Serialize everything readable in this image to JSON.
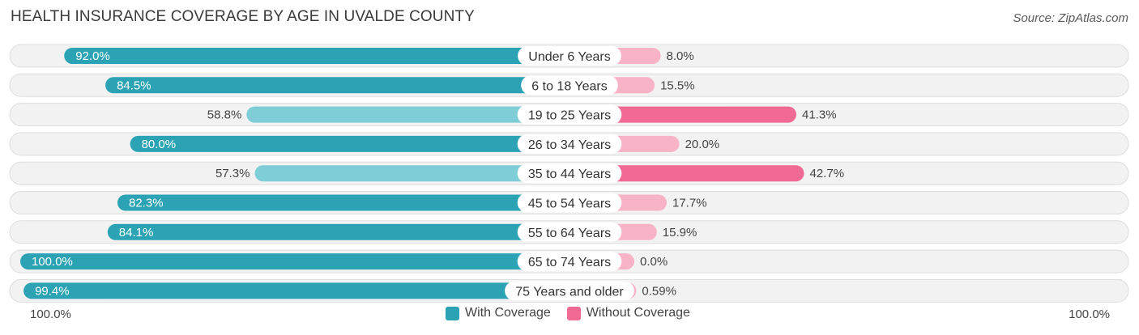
{
  "header": {
    "title": "HEALTH INSURANCE COVERAGE BY AGE IN UVALDE COUNTY",
    "source": "Source: ZipAtlas.com"
  },
  "colors": {
    "with_dark": "#2BA3B5",
    "with_light": "#7FCDD6",
    "without_dark": "#F06A93",
    "without_light": "#F8B3C7",
    "row_bg": "#F2F2F2",
    "row_border": "#DDDDDD"
  },
  "chart_data": {
    "type": "bar",
    "orientation": "horizontal-diverging",
    "title": "HEALTH INSURANCE COVERAGE BY AGE IN UVALDE COUNTY",
    "categories": [
      "Under 6 Years",
      "6 to 18 Years",
      "19 to 25 Years",
      "26 to 34 Years",
      "35 to 44 Years",
      "45 to 54 Years",
      "55 to 64 Years",
      "65 to 74 Years",
      "75 Years and older"
    ],
    "series": [
      {
        "name": "With Coverage",
        "values": [
          92.0,
          84.5,
          58.8,
          80.0,
          57.3,
          82.3,
          84.1,
          100.0,
          99.4
        ],
        "labels": [
          "92.0%",
          "84.5%",
          "58.8%",
          "80.0%",
          "57.3%",
          "82.3%",
          "84.1%",
          "100.0%",
          "99.4%"
        ]
      },
      {
        "name": "Without Coverage",
        "values": [
          8.0,
          15.5,
          41.3,
          20.0,
          42.7,
          17.7,
          15.9,
          0.0,
          0.59
        ],
        "labels": [
          "8.0%",
          "15.5%",
          "41.3%",
          "20.0%",
          "42.7%",
          "17.7%",
          "15.9%",
          "0.0%",
          "0.59%"
        ]
      }
    ],
    "xlim": [
      -100,
      100
    ],
    "axis_left_label": "100.0%",
    "axis_right_label": "100.0%",
    "legend_position": "bottom-center"
  }
}
